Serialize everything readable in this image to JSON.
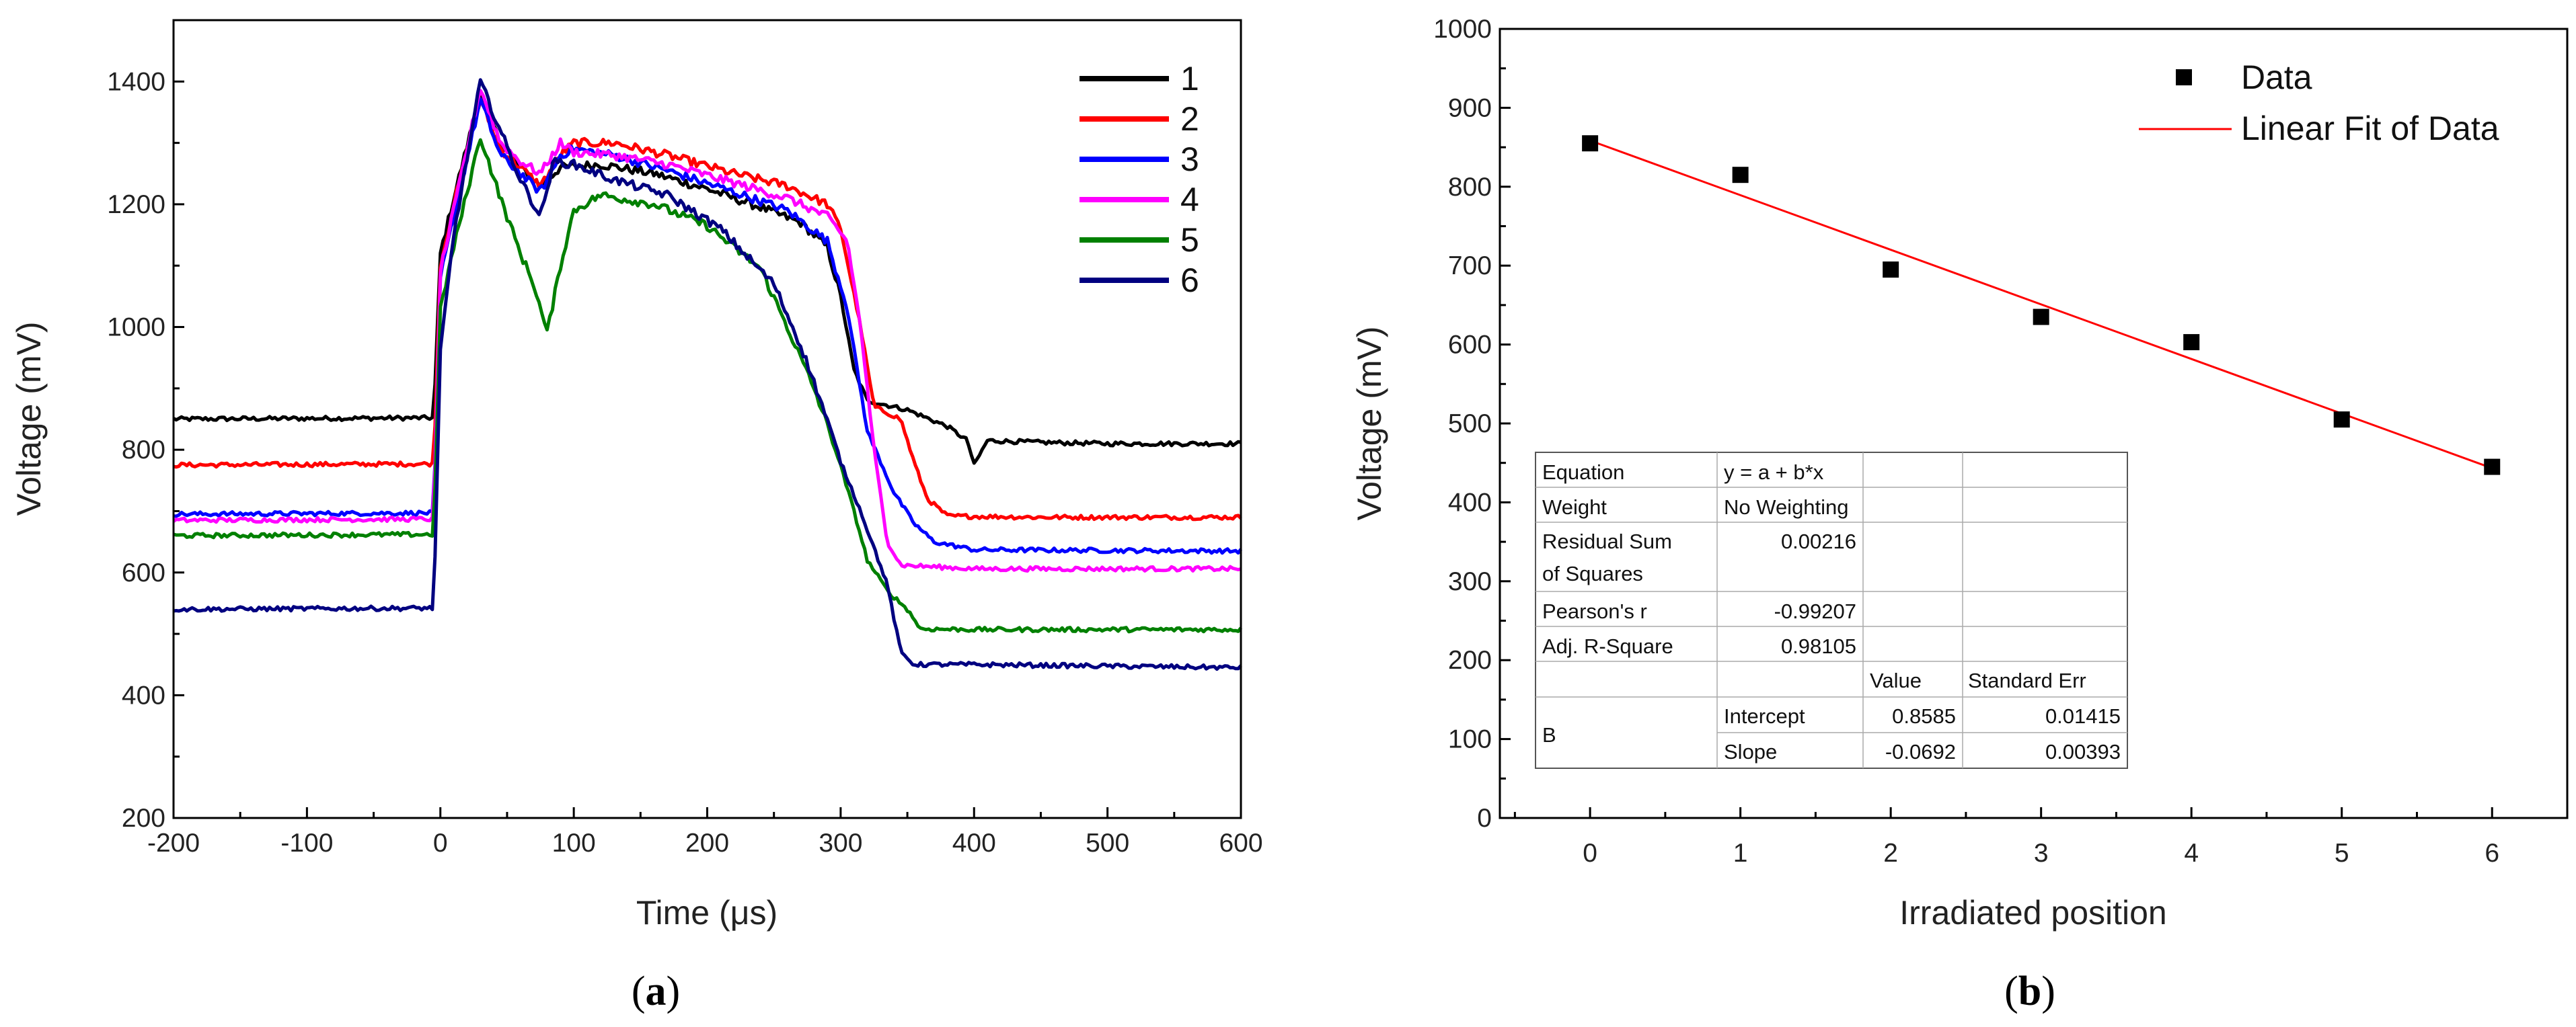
{
  "chart_data": [
    {
      "id": "a",
      "type": "line",
      "caption": "a",
      "xlabel": "Time (μs)",
      "ylabel": "Voltage (mV)",
      "xlim": [
        -200,
        600
      ],
      "ylim": [
        200,
        1500
      ],
      "xticks": [
        "-200",
        "-100",
        "0",
        "100",
        "200",
        "300",
        "400",
        "500",
        "600"
      ],
      "yticks": [
        "200",
        "400",
        "600",
        "800",
        "1000",
        "1200",
        "1400"
      ],
      "legend_position": "top-right",
      "series": [
        {
          "name": "1",
          "color": "#000000",
          "points": [
            [
              -200,
              850
            ],
            [
              -5,
              852
            ],
            [
              0,
              1120
            ],
            [
              10,
              1210
            ],
            [
              30,
              1380
            ],
            [
              45,
              1300
            ],
            [
              60,
              1260
            ],
            [
              75,
              1230
            ],
            [
              90,
              1260
            ],
            [
              120,
              1265
            ],
            [
              160,
              1250
            ],
            [
              200,
              1225
            ],
            [
              240,
              1195
            ],
            [
              270,
              1170
            ],
            [
              290,
              1130
            ],
            [
              300,
              1050
            ],
            [
              310,
              930
            ],
            [
              320,
              880
            ],
            [
              350,
              865
            ],
            [
              380,
              838
            ],
            [
              395,
              815
            ],
            [
              400,
              775
            ],
            [
              410,
              815
            ],
            [
              450,
              812
            ],
            [
              500,
              810
            ],
            [
              600,
              810
            ]
          ]
        },
        {
          "name": "2",
          "color": "#ff0000",
          "points": [
            [
              -200,
              775
            ],
            [
              -5,
              777
            ],
            [
              0,
              1100
            ],
            [
              10,
              1200
            ],
            [
              30,
              1370
            ],
            [
              45,
              1290
            ],
            [
              60,
              1260
            ],
            [
              75,
              1230
            ],
            [
              90,
              1280
            ],
            [
              100,
              1300
            ],
            [
              130,
              1300
            ],
            [
              170,
              1280
            ],
            [
              220,
              1250
            ],
            [
              260,
              1230
            ],
            [
              290,
              1200
            ],
            [
              300,
              1160
            ],
            [
              315,
              1000
            ],
            [
              325,
              870
            ],
            [
              345,
              850
            ],
            [
              355,
              780
            ],
            [
              365,
              720
            ],
            [
              380,
              692
            ],
            [
              450,
              690
            ],
            [
              600,
              690
            ]
          ]
        },
        {
          "name": "3",
          "color": "#0000ff",
          "points": [
            [
              -200,
              695
            ],
            [
              -5,
              697
            ],
            [
              0,
              1080
            ],
            [
              10,
              1180
            ],
            [
              30,
              1370
            ],
            [
              45,
              1280
            ],
            [
              60,
              1250
            ],
            [
              75,
              1220
            ],
            [
              90,
              1280
            ],
            [
              100,
              1290
            ],
            [
              130,
              1280
            ],
            [
              170,
              1255
            ],
            [
              220,
              1220
            ],
            [
              260,
              1190
            ],
            [
              290,
              1140
            ],
            [
              305,
              1030
            ],
            [
              320,
              830
            ],
            [
              330,
              780
            ],
            [
              340,
              730
            ],
            [
              355,
              680
            ],
            [
              370,
              650
            ],
            [
              400,
              637
            ],
            [
              600,
              635
            ]
          ]
        },
        {
          "name": "4",
          "color": "#ff00ff",
          "points": [
            [
              -200,
              685
            ],
            [
              -5,
              687
            ],
            [
              0,
              1090
            ],
            [
              10,
              1190
            ],
            [
              30,
              1390
            ],
            [
              45,
              1300
            ],
            [
              60,
              1270
            ],
            [
              75,
              1250
            ],
            [
              90,
              1300
            ],
            [
              100,
              1285
            ],
            [
              130,
              1280
            ],
            [
              170,
              1265
            ],
            [
              220,
              1235
            ],
            [
              260,
              1210
            ],
            [
              290,
              1180
            ],
            [
              305,
              1140
            ],
            [
              315,
              1000
            ],
            [
              325,
              800
            ],
            [
              335,
              650
            ],
            [
              345,
              612
            ],
            [
              400,
              606
            ],
            [
              600,
              606
            ]
          ]
        },
        {
          "name": "5",
          "color": "#008000",
          "points": [
            [
              -200,
              660
            ],
            [
              -5,
              662
            ],
            [
              0,
              1030
            ],
            [
              10,
              1130
            ],
            [
              30,
              1310
            ],
            [
              45,
              1210
            ],
            [
              60,
              1120
            ],
            [
              70,
              1070
            ],
            [
              80,
              990
            ],
            [
              90,
              1100
            ],
            [
              100,
              1190
            ],
            [
              120,
              1215
            ],
            [
              160,
              1200
            ],
            [
              200,
              1165
            ],
            [
              240,
              1095
            ],
            [
              260,
              1000
            ],
            [
              280,
              900
            ],
            [
              295,
              810
            ],
            [
              310,
              700
            ],
            [
              320,
              620
            ],
            [
              335,
              570
            ],
            [
              350,
              540
            ],
            [
              360,
              508
            ],
            [
              400,
              507
            ],
            [
              600,
              507
            ]
          ]
        },
        {
          "name": "6",
          "color": "#000080",
          "points": [
            [
              -200,
              540
            ],
            [
              -5,
              542
            ],
            [
              0,
              960
            ],
            [
              10,
              1150
            ],
            [
              30,
              1400
            ],
            [
              45,
              1320
            ],
            [
              60,
              1240
            ],
            [
              75,
              1180
            ],
            [
              85,
              1270
            ],
            [
              100,
              1265
            ],
            [
              130,
              1240
            ],
            [
              170,
              1215
            ],
            [
              210,
              1160
            ],
            [
              250,
              1070
            ],
            [
              270,
              970
            ],
            [
              285,
              880
            ],
            [
              300,
              780
            ],
            [
              315,
              700
            ],
            [
              325,
              640
            ],
            [
              335,
              580
            ],
            [
              345,
              470
            ],
            [
              355,
              450
            ],
            [
              400,
              450
            ],
            [
              600,
              445
            ]
          ]
        }
      ]
    },
    {
      "id": "b",
      "type": "scatter",
      "caption": "b",
      "xlabel": "Irradiated position",
      "ylabel": "Voltage (mV)",
      "xlim": [
        -0.6,
        6.5
      ],
      "ylim": [
        0,
        1000
      ],
      "xticks": [
        "0",
        "1",
        "2",
        "3",
        "4",
        "5",
        "6"
      ],
      "yticks": [
        "0",
        "100",
        "200",
        "300",
        "400",
        "500",
        "600",
        "700",
        "800",
        "900",
        "1000"
      ],
      "legend_position": "top-right",
      "legend": {
        "data_label": "Data",
        "fit_label": "Linear Fit of Data"
      },
      "points": {
        "x": [
          0,
          1,
          2,
          3,
          4,
          5,
          6
        ],
        "y": [
          855,
          815,
          695,
          635,
          603,
          505,
          445
        ]
      },
      "fit": {
        "intercept": 858.5,
        "slope": -69.2,
        "color": "#ff0000"
      },
      "stats_table": {
        "equation_label": "Equation",
        "equation_value": "y = a + b*x",
        "weight_label": "Weight",
        "weight_value": "No Weighting",
        "rss_label_1": "Residual Sum",
        "rss_label_2": "of Squares",
        "rss_value": "0.00216",
        "pearson_label": "Pearson's r",
        "pearson_value": "-0.99207",
        "adjr_label": "Adj. R-Square",
        "adjr_value": "0.98105",
        "value_header": "Value",
        "stderr_header": "Standard Err",
        "param_group": "B",
        "intercept_label": "Intercept",
        "intercept_value": "0.8585",
        "intercept_err": "0.01415",
        "slope_label": "Slope",
        "slope_value": "-0.0692",
        "slope_err": "0.00393"
      }
    }
  ]
}
